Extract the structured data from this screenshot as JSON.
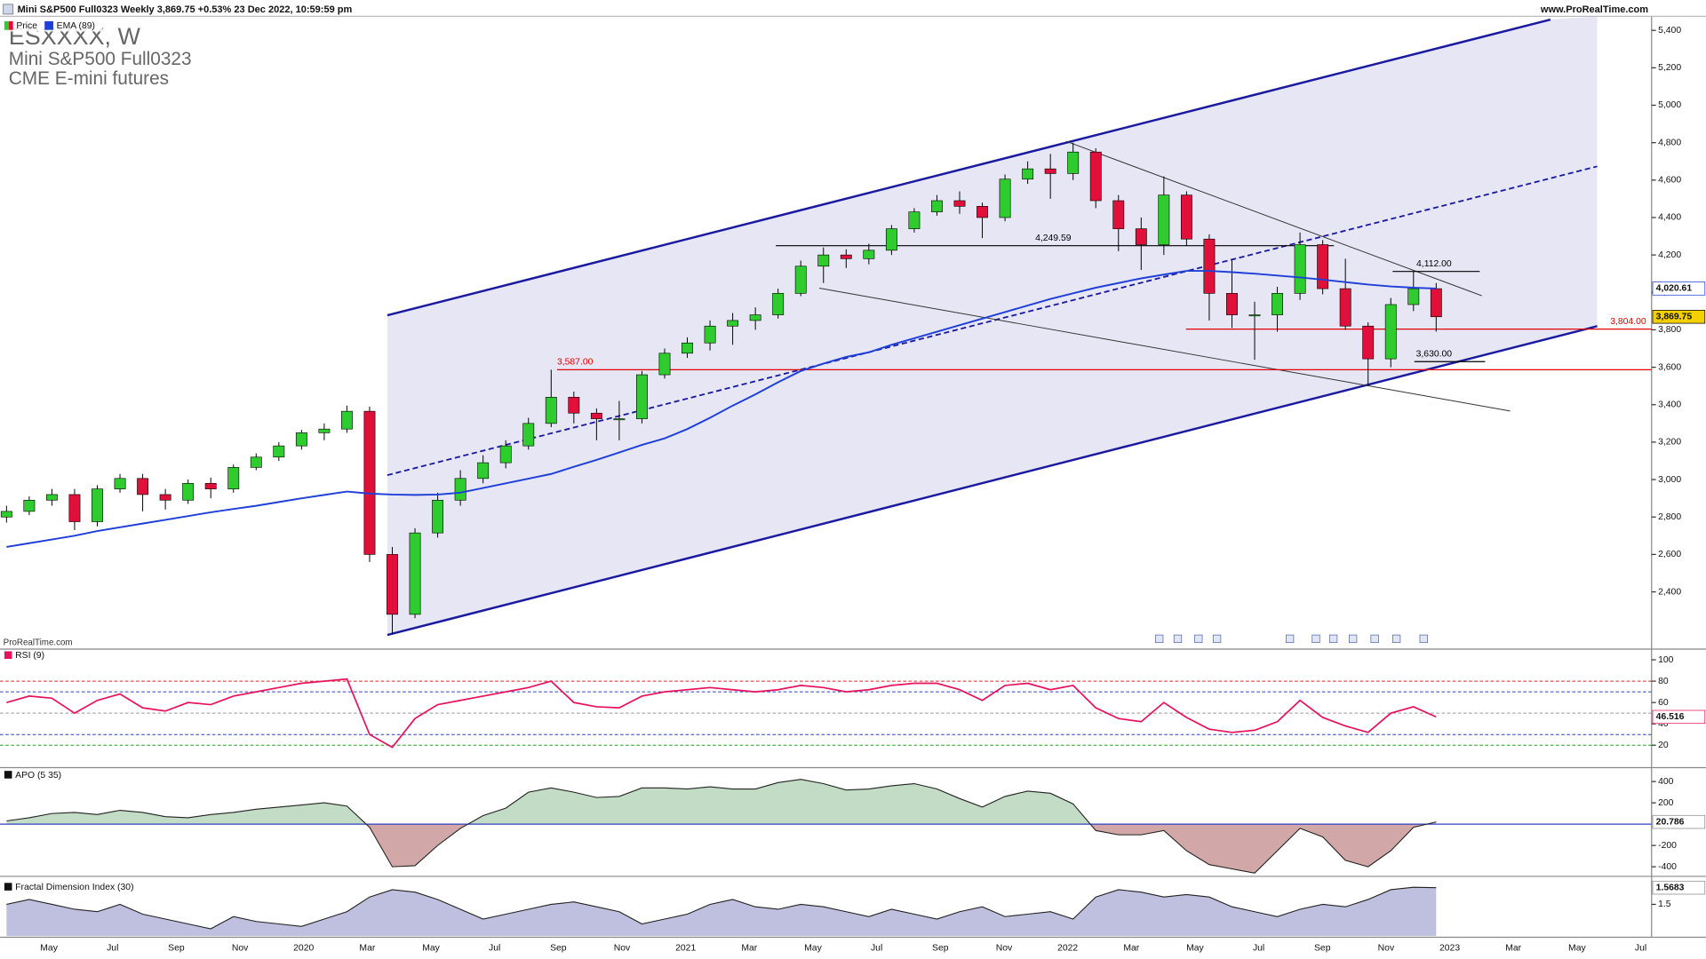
{
  "header": {
    "site": "www.ProRealTime.com",
    "watermark": "ProRealTime.com"
  },
  "x_axis": {
    "labels": [
      "May",
      "Jul",
      "Sep",
      "Nov",
      "2020",
      "Mar",
      "May",
      "Jul",
      "Sep",
      "Nov",
      "2021",
      "Mar",
      "May",
      "Jul",
      "Sep",
      "Nov",
      "2022",
      "Mar",
      "May",
      "Jul",
      "Sep",
      "Nov",
      "2023",
      "Mar",
      "May",
      "Jul"
    ]
  },
  "chart_data": [
    {
      "type": "candlestick",
      "title": "Mini S&P500 Full0323 Weekly 3,869.75 +0.53% 23 Dec 2022, 10:59:59 pm",
      "symbol": "ESXXXX, W",
      "subtitle": [
        "Mini S&P500 Full0323",
        "CME E-mini futures"
      ],
      "price_name": "Price",
      "up_color": "#2ecc2e",
      "down_color": "#e0103a",
      "open": [
        2800,
        2830,
        2890,
        2920,
        2775,
        2950,
        3006,
        2920,
        2890,
        2980,
        2950,
        3065,
        3120,
        3180,
        3250,
        3270,
        3365,
        2600,
        2280,
        2715,
        2890,
        3006,
        3090,
        3180,
        3300,
        3440,
        3355,
        3325,
        3325,
        3560,
        3675,
        3730,
        3820,
        3850,
        3880,
        3995,
        4140,
        4200,
        4180,
        4225,
        4340,
        4430,
        4490,
        4460,
        4400,
        4605,
        4660,
        4635,
        4750,
        4490,
        4340,
        4255,
        4520,
        4285,
        3995,
        3880,
        3880,
        3995,
        4255,
        4020,
        3820,
        3645,
        3935,
        4020
      ],
      "high": [
        2860,
        2910,
        2950,
        2950,
        2970,
        3030,
        3030,
        2950,
        3000,
        3010,
        3080,
        3140,
        3200,
        3265,
        3300,
        3395,
        3390,
        2640,
        2740,
        2930,
        3050,
        3130,
        3210,
        3330,
        3587,
        3470,
        3380,
        3420,
        3580,
        3700,
        3760,
        3850,
        3890,
        3920,
        4020,
        4170,
        4240,
        4230,
        4260,
        4360,
        4450,
        4520,
        4540,
        4480,
        4630,
        4700,
        4740,
        4800,
        4770,
        4520,
        4400,
        4620,
        4540,
        4310,
        4170,
        3950,
        4030,
        4320,
        4280,
        4180,
        3840,
        3970,
        4112,
        4050
      ],
      "low": [
        2770,
        2810,
        2860,
        2730,
        2750,
        2930,
        2830,
        2840,
        2870,
        2900,
        2930,
        3050,
        3100,
        3160,
        3210,
        3250,
        2560,
        2175,
        2260,
        2690,
        2860,
        2980,
        3060,
        3160,
        3280,
        3300,
        3210,
        3210,
        3300,
        3540,
        3650,
        3690,
        3720,
        3800,
        3860,
        3980,
        4050,
        4130,
        4150,
        4200,
        4320,
        4410,
        4420,
        4290,
        4380,
        4580,
        4500,
        4600,
        4450,
        4220,
        4120,
        4200,
        4250,
        3850,
        3810,
        3640,
        3790,
        3960,
        3990,
        3800,
        3500,
        3600,
        3900,
        3790
      ],
      "close": [
        2830,
        2890,
        2920,
        2775,
        2950,
        3006,
        2920,
        2890,
        2980,
        2950,
        3065,
        3120,
        3180,
        3250,
        3270,
        3365,
        2600,
        2280,
        2715,
        2890,
        3006,
        3090,
        3180,
        3300,
        3440,
        3355,
        3325,
        3325,
        3560,
        3675,
        3730,
        3820,
        3850,
        3880,
        3995,
        4140,
        4200,
        4180,
        4225,
        4340,
        4430,
        4490,
        4460,
        4400,
        4605,
        4660,
        4635,
        4750,
        4490,
        4340,
        4255,
        4520,
        4285,
        3995,
        3880,
        3880,
        3995,
        4255,
        4020,
        3820,
        3645,
        3935,
        4020,
        3869.75
      ],
      "last_label": "3,869.75",
      "series": [
        {
          "name": "EMA (89)",
          "color": "#1e40d8",
          "last_label": "4,020.61",
          "values": [
            2640,
            2660,
            2680,
            2700,
            2725,
            2745,
            2765,
            2785,
            2805,
            2825,
            2843,
            2860,
            2880,
            2900,
            2918,
            2936,
            2925,
            2920,
            2918,
            2920,
            2930,
            2955,
            2980,
            3005,
            3030,
            3068,
            3105,
            3145,
            3185,
            3220,
            3270,
            3330,
            3395,
            3455,
            3520,
            3580,
            3620,
            3655,
            3680,
            3720,
            3755,
            3790,
            3825,
            3860,
            3895,
            3930,
            3965,
            3995,
            4025,
            4050,
            4075,
            4095,
            4115,
            4115,
            4108,
            4100,
            4090,
            4080,
            4068,
            4055,
            4042,
            4032,
            4025,
            4020.61
          ]
        }
      ],
      "levels": [
        {
          "value": 4249.59,
          "label": "4,249.59",
          "color": "#000000"
        },
        {
          "value": 3587,
          "label": "3,587.00",
          "color": "#e00000"
        },
        {
          "value": 3804,
          "label": "3,804.00",
          "color": "#e00000"
        },
        {
          "value": 4112,
          "label": "4,112.00",
          "color": "#000000"
        },
        {
          "value": 3630,
          "label": "3,630.00",
          "color": "#000000"
        }
      ],
      "ylim": [
        2100,
        5475
      ],
      "yticks": [
        {
          "value": 2400,
          "label": "2,400"
        },
        {
          "value": 2600,
          "label": "2,600"
        },
        {
          "value": 2800,
          "label": "2,800"
        },
        {
          "value": 3000,
          "label": "3,000"
        },
        {
          "value": 3200,
          "label": "3,200"
        },
        {
          "value": 3400,
          "label": "3,400"
        },
        {
          "value": 3600,
          "label": "3,600"
        },
        {
          "value": 3800,
          "label": "3,800"
        },
        {
          "value": 4000,
          "label": "4,000"
        },
        {
          "value": 4200,
          "label": "4,200"
        },
        {
          "value": 4400,
          "label": "4,400"
        },
        {
          "value": 4600,
          "label": "4,600"
        },
        {
          "value": 4800,
          "label": "4,800"
        },
        {
          "value": 5000,
          "label": "5,000"
        },
        {
          "value": 5200,
          "label": "5,200"
        },
        {
          "value": 5400,
          "label": "5,400"
        }
      ]
    },
    {
      "type": "line",
      "title": "RSI (9)",
      "color": "#e8115b",
      "values": [
        60,
        66,
        64,
        50,
        62,
        68,
        55,
        52,
        60,
        58,
        66,
        70,
        74,
        78,
        80,
        82,
        30,
        18,
        45,
        58,
        62,
        66,
        70,
        74,
        80,
        60,
        56,
        55,
        66,
        70,
        72,
        74,
        72,
        70,
        72,
        76,
        74,
        70,
        72,
        76,
        78,
        78,
        72,
        62,
        76,
        78,
        72,
        76,
        55,
        45,
        42,
        60,
        46,
        35,
        32,
        34,
        42,
        62,
        46,
        38,
        32,
        50,
        56,
        46.516
      ],
      "levels": [
        {
          "value": 80,
          "color": "#e02020"
        },
        {
          "value": 70,
          "color": "#3040c0"
        },
        {
          "value": 50,
          "color": "#999999"
        },
        {
          "value": 30,
          "color": "#3040c0"
        },
        {
          "value": 20,
          "color": "#20a020"
        }
      ],
      "ylim": [
        0,
        109
      ],
      "yticks": [
        20,
        40,
        60,
        80,
        100
      ]
    },
    {
      "type": "area",
      "title": "APO (5 35)",
      "color": "#222222",
      "colors": {
        "above": "#4f9a5a",
        "below": "#9a3b3b"
      },
      "zero_color": "#3040c0",
      "values": [
        30,
        60,
        100,
        110,
        90,
        130,
        110,
        70,
        60,
        90,
        110,
        140,
        160,
        180,
        200,
        170,
        -30,
        -400,
        -390,
        -200,
        -40,
        80,
        150,
        300,
        340,
        300,
        250,
        260,
        340,
        340,
        330,
        350,
        330,
        330,
        390,
        420,
        380,
        320,
        330,
        360,
        380,
        330,
        240,
        160,
        260,
        310,
        290,
        190,
        -60,
        -100,
        -100,
        -60,
        -250,
        -380,
        -420,
        -460,
        -250,
        -40,
        -120,
        -340,
        -400,
        -250,
        -30,
        20.786
      ],
      "ylim": [
        -480,
        520
      ],
      "yticks": [
        -400,
        -200,
        200,
        400
      ]
    },
    {
      "type": "area",
      "title": "Fractal Dimension Index (30)",
      "color": "#222222",
      "fill": "#7272b8",
      "values": [
        1.5,
        1.52,
        1.5,
        1.48,
        1.47,
        1.5,
        1.46,
        1.44,
        1.42,
        1.4,
        1.45,
        1.43,
        1.42,
        1.41,
        1.44,
        1.47,
        1.53,
        1.56,
        1.55,
        1.52,
        1.48,
        1.44,
        1.46,
        1.48,
        1.5,
        1.51,
        1.49,
        1.47,
        1.42,
        1.44,
        1.46,
        1.5,
        1.52,
        1.49,
        1.48,
        1.5,
        1.49,
        1.47,
        1.45,
        1.48,
        1.46,
        1.44,
        1.47,
        1.49,
        1.45,
        1.46,
        1.47,
        1.44,
        1.53,
        1.56,
        1.55,
        1.53,
        1.54,
        1.53,
        1.49,
        1.47,
        1.45,
        1.48,
        1.5,
        1.49,
        1.52,
        1.56,
        1.57,
        1.5683
      ],
      "ylim": [
        1.37,
        1.61
      ],
      "yticks": [
        1.5
      ]
    }
  ]
}
